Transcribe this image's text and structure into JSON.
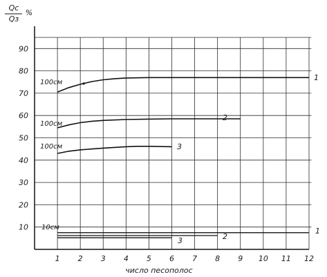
{
  "chart_data": {
    "type": "line",
    "ylabel_numerator": "Qс",
    "ylabel_denominator": "Qз",
    "ylabel_unit": "%",
    "xlabel": "число   песополос",
    "xlim": [
      0,
      12
    ],
    "ylim": [
      0,
      100
    ],
    "x_ticks": [
      1,
      2,
      3,
      4,
      5,
      6,
      7,
      8,
      9,
      10,
      11,
      12
    ],
    "y_ticks": [
      10,
      20,
      30,
      40,
      50,
      60,
      70,
      80,
      90
    ],
    "grid": true,
    "series": [
      {
        "depth_label": "100см",
        "curve_label": "1",
        "x": [
          1,
          1.5,
          2,
          2.5,
          3,
          3.5,
          4,
          5,
          6,
          7,
          8,
          9,
          10,
          11,
          12
        ],
        "y": [
          70.5,
          72.5,
          74,
          75.2,
          76,
          76.5,
          76.8,
          77,
          77,
          77,
          77,
          77,
          77,
          77,
          77
        ]
      },
      {
        "depth_label": "100см",
        "curve_label": "2",
        "x": [
          1,
          1.5,
          2,
          2.5,
          3,
          4,
          5,
          6,
          7,
          8,
          9
        ],
        "y": [
          54.5,
          55.8,
          56.8,
          57.4,
          57.8,
          58.2,
          58.4,
          58.5,
          58.5,
          58.5,
          58.5
        ]
      },
      {
        "depth_label": "100см",
        "curve_label": "3",
        "x": [
          1,
          1.5,
          2,
          3,
          4,
          4.5,
          5,
          6
        ],
        "y": [
          43,
          44,
          44.6,
          45.4,
          46,
          46.2,
          46.2,
          46
        ]
      },
      {
        "depth_label": "10см",
        "curve_label": "1",
        "x": [
          1,
          12
        ],
        "y": [
          7.5,
          7.5
        ]
      },
      {
        "depth_label": "",
        "curve_label": "2",
        "x": [
          1,
          8
        ],
        "y": [
          6.2,
          6.2
        ]
      },
      {
        "depth_label": "",
        "curve_label": "3",
        "x": [
          1,
          6
        ],
        "y": [
          5.2,
          5.2
        ]
      }
    ]
  }
}
